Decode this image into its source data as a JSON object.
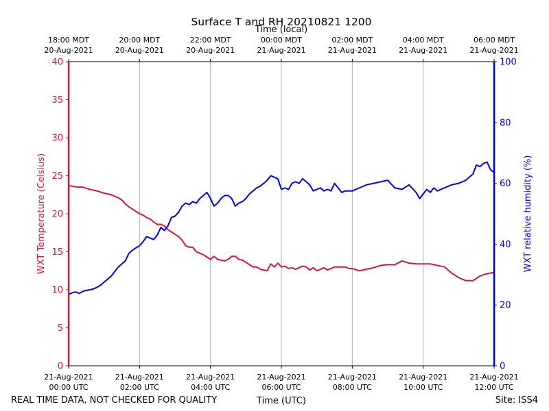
{
  "chart_data": {
    "type": "line",
    "title": "Surface T and RH 20210821 1200",
    "top_axis_label": "Time (local)",
    "xlabel": "Time (UTC)",
    "ylabel_left": "WXT Temperature (Celsius)",
    "ylabel_right": "WXT relative humidity (%)",
    "ylim_left": [
      0,
      40
    ],
    "ylim_right": [
      0,
      100
    ],
    "xlim_hours": [
      0,
      12
    ],
    "left_ticks": [
      0,
      5,
      10,
      15,
      20,
      25,
      30,
      35,
      40
    ],
    "right_ticks": [
      0,
      20,
      40,
      60,
      80,
      100
    ],
    "grid": "vertical",
    "bottom_ticks": [
      {
        "hour": 0,
        "date": "21-Aug-2021",
        "time": "00:00 UTC"
      },
      {
        "hour": 2,
        "date": "21-Aug-2021",
        "time": "02:00 UTC"
      },
      {
        "hour": 4,
        "date": "21-Aug-2021",
        "time": "04:00 UTC"
      },
      {
        "hour": 6,
        "date": "21-Aug-2021",
        "time": "06:00 UTC"
      },
      {
        "hour": 8,
        "date": "21-Aug-2021",
        "time": "08:00 UTC"
      },
      {
        "hour": 10,
        "date": "21-Aug-2021",
        "time": "10:00 UTC"
      },
      {
        "hour": 12,
        "date": "21-Aug-2021",
        "time": "12:00 UTC"
      }
    ],
    "top_ticks": [
      {
        "hour": 0,
        "time": "18:00 MDT",
        "date": "20-Aug-2021"
      },
      {
        "hour": 2,
        "time": "20:00 MDT",
        "date": "20-Aug-2021"
      },
      {
        "hour": 4,
        "time": "22:00 MDT",
        "date": "20-Aug-2021"
      },
      {
        "hour": 6,
        "time": "00:00 MDT",
        "date": "21-Aug-2021"
      },
      {
        "hour": 8,
        "time": "02:00 MDT",
        "date": "21-Aug-2021"
      },
      {
        "hour": 10,
        "time": "04:00 MDT",
        "date": "21-Aug-2021"
      },
      {
        "hour": 12,
        "time": "06:00 MDT",
        "date": "21-Aug-2021"
      }
    ],
    "series": [
      {
        "name": "WXT Temperature",
        "axis": "left",
        "color": "#dc143c",
        "x": [
          0.0,
          0.25,
          0.4,
          0.6,
          0.8,
          1.0,
          1.2,
          1.3,
          1.4,
          1.5,
          1.6,
          1.7,
          1.8,
          1.9,
          2.0,
          2.1,
          2.2,
          2.3,
          2.4,
          2.5,
          2.6,
          2.7,
          2.8,
          2.9,
          3.0,
          3.1,
          3.2,
          3.3,
          3.4,
          3.5,
          3.6,
          3.7,
          3.8,
          3.9,
          4.0,
          4.1,
          4.2,
          4.3,
          4.4,
          4.5,
          4.6,
          4.7,
          4.8,
          4.9,
          5.0,
          5.1,
          5.2,
          5.3,
          5.4,
          5.5,
          5.6,
          5.7,
          5.8,
          5.9,
          6.0,
          6.1,
          6.2,
          6.3,
          6.4,
          6.5,
          6.6,
          6.7,
          6.8,
          6.9,
          7.0,
          7.1,
          7.2,
          7.3,
          7.4,
          7.5,
          7.6,
          7.7,
          7.8,
          7.9,
          8.0,
          8.2,
          8.4,
          8.6,
          8.8,
          9.0,
          9.2,
          9.4,
          9.6,
          9.8,
          10.0,
          10.2,
          10.4,
          10.6,
          10.8,
          11.0,
          11.2,
          11.4,
          11.6,
          11.7,
          11.8,
          11.9,
          12.0
        ],
        "values": [
          23.7,
          23.5,
          23.5,
          23.2,
          23.0,
          22.7,
          22.5,
          22.3,
          22.1,
          21.8,
          21.3,
          20.9,
          20.6,
          20.3,
          20.0,
          19.8,
          19.5,
          19.3,
          18.9,
          18.6,
          18.6,
          18.4,
          17.9,
          17.6,
          17.3,
          17.0,
          16.5,
          15.8,
          15.6,
          15.6,
          15.0,
          14.8,
          14.6,
          14.3,
          14.0,
          14.4,
          14.0,
          13.9,
          13.8,
          14.0,
          14.4,
          14.4,
          14.0,
          13.9,
          13.6,
          13.3,
          13.0,
          13.0,
          12.7,
          12.6,
          12.5,
          13.4,
          13.0,
          13.5,
          13.0,
          13.1,
          12.8,
          12.9,
          12.7,
          12.9,
          13.1,
          13.0,
          12.6,
          12.9,
          12.5,
          12.7,
          12.9,
          12.6,
          12.8,
          13.0,
          13.0,
          13.0,
          13.0,
          12.8,
          12.8,
          12.5,
          12.7,
          12.9,
          13.2,
          13.3,
          13.3,
          13.8,
          13.5,
          13.4,
          13.4,
          13.4,
          13.2,
          13.0,
          12.2,
          11.6,
          11.2,
          11.2,
          11.8,
          12.0,
          12.1,
          12.2,
          12.3
        ]
      },
      {
        "name": "WXT relative humidity",
        "axis": "right",
        "color": "#0000ff",
        "x": [
          0.0,
          0.1,
          0.2,
          0.3,
          0.4,
          0.5,
          0.6,
          0.7,
          0.8,
          0.9,
          1.0,
          1.1,
          1.2,
          1.3,
          1.4,
          1.5,
          1.6,
          1.7,
          1.8,
          1.9,
          2.0,
          2.1,
          2.2,
          2.3,
          2.4,
          2.5,
          2.6,
          2.7,
          2.8,
          2.9,
          3.0,
          3.1,
          3.2,
          3.3,
          3.4,
          3.5,
          3.6,
          3.7,
          3.8,
          3.9,
          4.0,
          4.1,
          4.2,
          4.3,
          4.4,
          4.5,
          4.6,
          4.7,
          4.8,
          4.9,
          5.0,
          5.1,
          5.2,
          5.3,
          5.4,
          5.5,
          5.6,
          5.7,
          5.8,
          5.9,
          6.0,
          6.1,
          6.2,
          6.3,
          6.4,
          6.5,
          6.6,
          6.7,
          6.8,
          6.9,
          7.0,
          7.1,
          7.2,
          7.3,
          7.4,
          7.5,
          7.6,
          7.7,
          7.8,
          7.9,
          8.0,
          8.2,
          8.4,
          8.6,
          8.8,
          9.0,
          9.2,
          9.4,
          9.6,
          9.8,
          9.9,
          10.0,
          10.1,
          10.2,
          10.3,
          10.4,
          10.5,
          10.6,
          10.8,
          11.0,
          11.2,
          11.4,
          11.5,
          11.6,
          11.7,
          11.8,
          11.9,
          12.0
        ],
        "values": [
          23.5,
          24.0,
          24.3,
          23.8,
          24.5,
          24.8,
          25.0,
          25.3,
          25.8,
          26.5,
          27.5,
          28.5,
          29.5,
          31.0,
          32.5,
          33.5,
          34.5,
          37.0,
          38.0,
          38.8,
          39.5,
          40.8,
          42.5,
          42.0,
          41.5,
          43.0,
          45.5,
          44.5,
          46.0,
          48.8,
          49.2,
          50.5,
          52.5,
          53.5,
          53.0,
          54.0,
          53.5,
          55.0,
          56.0,
          57.0,
          55.0,
          52.5,
          53.5,
          55.0,
          56.0,
          56.0,
          55.0,
          52.5,
          53.5,
          54.0,
          55.0,
          56.5,
          57.5,
          58.5,
          59.0,
          60.0,
          61.0,
          62.5,
          62.0,
          61.5,
          58.0,
          58.5,
          58.0,
          60.0,
          60.5,
          60.0,
          61.5,
          60.5,
          59.5,
          57.5,
          58.0,
          58.5,
          57.5,
          58.0,
          57.5,
          60.0,
          58.5,
          57.0,
          57.5,
          57.5,
          57.5,
          58.5,
          59.5,
          60.0,
          60.5,
          61.0,
          58.5,
          58.0,
          59.5,
          57.0,
          55.0,
          56.5,
          58.0,
          57.0,
          58.5,
          57.5,
          58.0,
          58.5,
          59.5,
          60.0,
          61.0,
          63.0,
          66.0,
          65.5,
          66.5,
          67.0,
          64.5,
          63.5
        ]
      }
    ]
  },
  "footer": {
    "disclaimer": "REAL TIME DATA, NOT CHECKED FOR QUALITY",
    "site": "Site: ISS4"
  },
  "colors": {
    "left_axis": "#dc143c",
    "right_axis": "#0000ff",
    "grid": "#b0b0b0"
  }
}
